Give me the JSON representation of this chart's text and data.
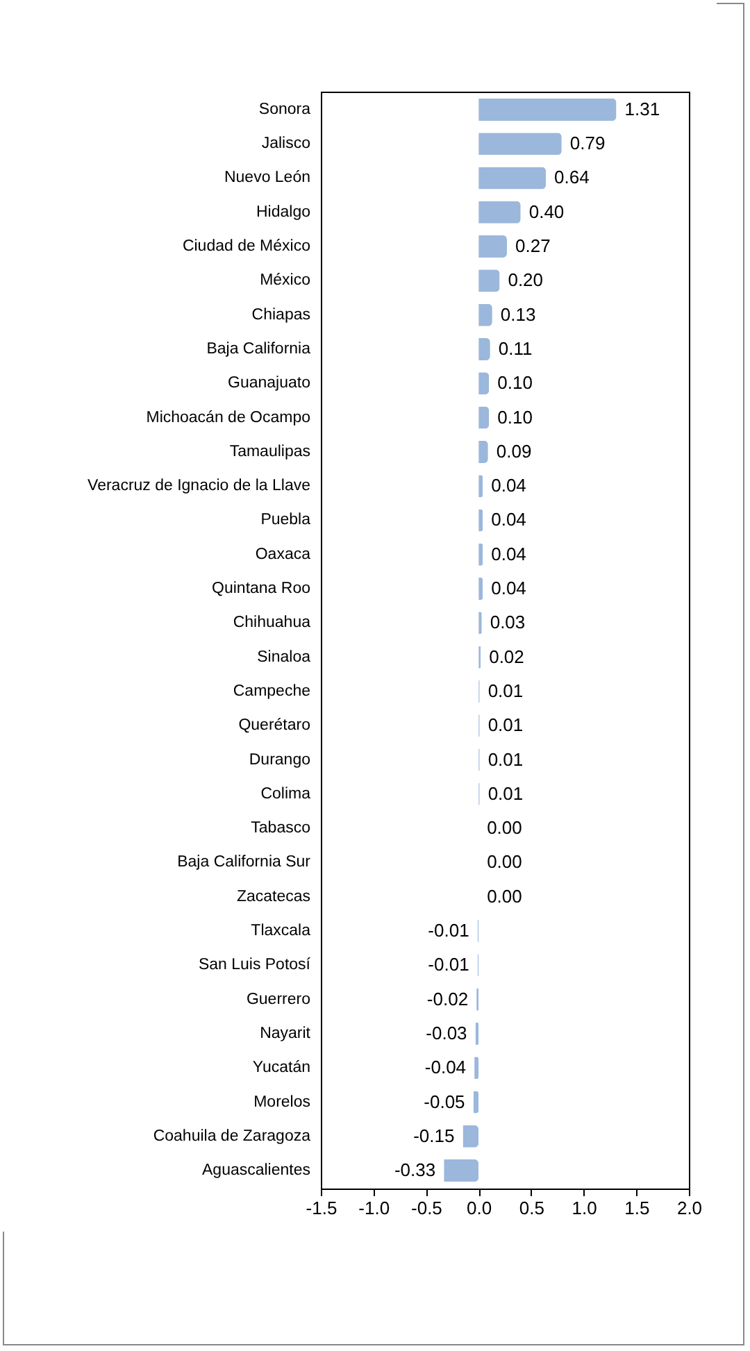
{
  "chart_data": {
    "type": "bar",
    "orientation": "horizontal",
    "categories": [
      "Sonora",
      "Jalisco",
      "Nuevo León",
      "Hidalgo",
      "Ciudad de México",
      "México",
      "Chiapas",
      "Baja California",
      "Guanajuato",
      "Michoacán de Ocampo",
      "Tamaulipas",
      "Veracruz de Ignacio de la Llave",
      "Puebla",
      "Oaxaca",
      "Quintana Roo",
      "Chihuahua",
      "Sinaloa",
      "Campeche",
      "Querétaro",
      "Durango",
      "Colima",
      "Tabasco",
      "Baja California Sur",
      "Zacatecas",
      "Tlaxcala",
      "San Luis Potosí",
      "Guerrero",
      "Nayarit",
      "Yucatán",
      "Morelos",
      "Coahuila de Zaragoza",
      "Aguascalientes"
    ],
    "values": [
      1.31,
      0.79,
      0.64,
      0.4,
      0.27,
      0.2,
      0.13,
      0.11,
      0.1,
      0.1,
      0.09,
      0.04,
      0.04,
      0.04,
      0.04,
      0.03,
      0.02,
      0.01,
      0.01,
      0.01,
      0.01,
      0.0,
      0.0,
      0.0,
      -0.01,
      -0.01,
      -0.02,
      -0.03,
      -0.04,
      -0.05,
      -0.15,
      -0.33
    ],
    "value_labels": [
      "1.31",
      "0.79",
      "0.64",
      "0.40",
      "0.27",
      "0.20",
      "0.13",
      "0.11",
      "0.10",
      "0.10",
      "0.09",
      "0.04",
      "0.04",
      "0.04",
      "0.04",
      "0.03",
      "0.02",
      "0.01",
      "0.01",
      "0.01",
      "0.01",
      "0.00",
      "0.00",
      "0.00",
      "-0.01",
      "-0.01",
      "-0.02",
      "-0.03",
      "-0.04",
      "-0.05",
      "-0.15",
      "-0.33"
    ],
    "color": "#9bb7dc",
    "xlim": [
      -1.5,
      2.0
    ],
    "xticks": [
      {
        "value": -1.5,
        "label": "-1.5"
      },
      {
        "value": -1,
        "label": "-1.0"
      },
      {
        "value": -0.5,
        "label": "-0.5"
      },
      {
        "value": 0,
        "label": "0.0"
      },
      {
        "value": 0.5,
        "label": "0.5"
      },
      {
        "value": 1,
        "label": "1.0"
      },
      {
        "value": 1.5,
        "label": "1.5"
      },
      {
        "value": 2,
        "label": "2.0"
      }
    ],
    "grid": false
  }
}
